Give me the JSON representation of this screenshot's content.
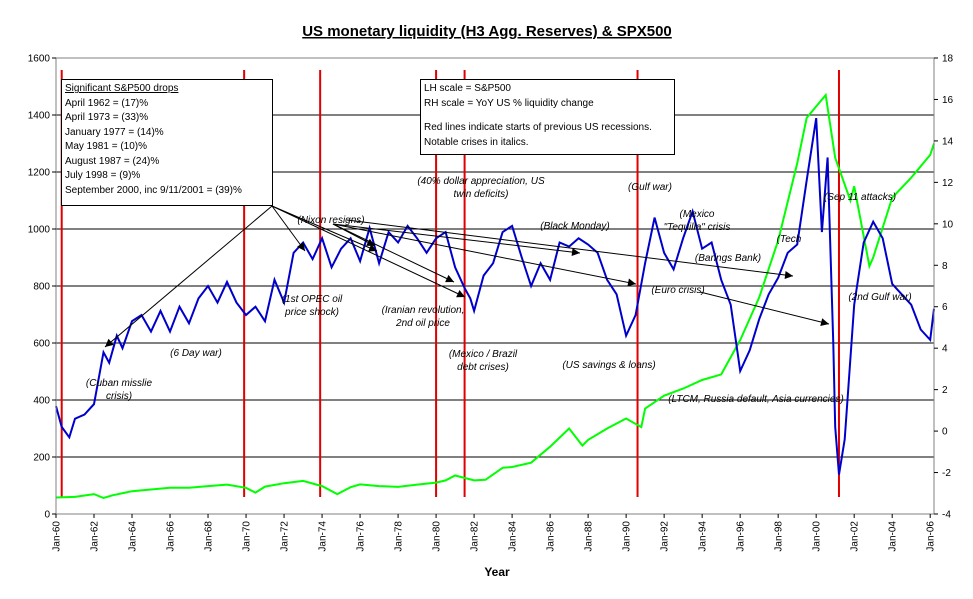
{
  "chart_data": {
    "type": "line",
    "title": "US monetary liquidity (H3 Agg. Reserves) & SPX500",
    "xlabel": "Year",
    "ylabel_left": "",
    "ylabel_right": "",
    "x_range": [
      1960.0,
      2006.2
    ],
    "ylim_left": [
      0,
      1600
    ],
    "ylim_right": [
      -4,
      18
    ],
    "left_ticks": [
      "0",
      "200",
      "400",
      "600",
      "800",
      "1000",
      "1200",
      "1400",
      "1600"
    ],
    "right_ticks": [
      "-4",
      "-2",
      "0",
      "2",
      "4",
      "6",
      "8",
      "10",
      "12",
      "14",
      "16",
      "18"
    ],
    "x_ticks": [
      "Jan-60",
      "Jan-62",
      "Jan-64",
      "Jan-66",
      "Jan-68",
      "Jan-70",
      "Jan-72",
      "Jan-74",
      "Jan-76",
      "Jan-78",
      "Jan-80",
      "Jan-82",
      "Jan-84",
      "Jan-86",
      "Jan-88",
      "Jan-90",
      "Jan-92",
      "Jan-94",
      "Jan-96",
      "Jan-98",
      "Jan-00",
      "Jan-02",
      "Jan-04",
      "Jan-06"
    ],
    "grid": "horizontal",
    "colors": {
      "spx": "#00ff00",
      "liquidity": "#0000cc",
      "recession": "#e00000"
    },
    "recession_starts": [
      1960.3,
      1969.9,
      1973.9,
      1980.0,
      1981.5,
      1990.6,
      2001.2
    ],
    "spx_series": {
      "axis": "left",
      "x": [
        1960.0,
        1961.0,
        1962.0,
        1962.5,
        1963.0,
        1964.0,
        1965.0,
        1966.0,
        1967.0,
        1968.0,
        1969.0,
        1970.0,
        1970.5,
        1971.0,
        1972.0,
        1973.0,
        1974.0,
        1974.8,
        1975.5,
        1976.0,
        1977.0,
        1978.0,
        1979.0,
        1980.0,
        1980.5,
        1981.0,
        1982.0,
        1982.6,
        1983.5,
        1984.0,
        1985.0,
        1986.0,
        1987.0,
        1987.7,
        1988.0,
        1989.0,
        1990.0,
        1990.8,
        1991.0,
        1992.0,
        1993.0,
        1994.0,
        1995.0,
        1996.0,
        1997.0,
        1998.0,
        1999.0,
        1999.5,
        2000.0,
        2000.5,
        2001.0,
        2001.8,
        2002.0,
        2002.8,
        2003.0,
        2004.0,
        2005.0,
        2006.0,
        2006.2
      ],
      "y": [
        58,
        60,
        70,
        56,
        66,
        80,
        86,
        92,
        92,
        98,
        103,
        92,
        75,
        96,
        108,
        116,
        98,
        70,
        94,
        104,
        98,
        95,
        103,
        110,
        118,
        135,
        118,
        120,
        162,
        165,
        180,
        236,
        300,
        240,
        260,
        300,
        335,
        305,
        370,
        415,
        440,
        470,
        490,
        610,
        760,
        960,
        1230,
        1390,
        1430,
        1470,
        1250,
        1100,
        1150,
        870,
        900,
        1110,
        1180,
        1260,
        1300
      ]
    },
    "liquidity_series": {
      "axis": "right",
      "x": [
        1960.0,
        1960.3,
        1960.7,
        1961.0,
        1961.5,
        1962.0,
        1962.5,
        1962.8,
        1963.2,
        1963.5,
        1964.0,
        1964.5,
        1965.0,
        1965.5,
        1966.0,
        1966.5,
        1967.0,
        1967.5,
        1968.0,
        1968.5,
        1969.0,
        1969.5,
        1970.0,
        1970.5,
        1971.0,
        1971.5,
        1972.0,
        1972.5,
        1973.0,
        1973.5,
        1974.0,
        1974.5,
        1975.0,
        1975.5,
        1976.0,
        1976.5,
        1977.0,
        1977.5,
        1978.0,
        1978.5,
        1979.0,
        1979.5,
        1980.0,
        1980.5,
        1981.0,
        1981.5,
        1981.8,
        1982.0,
        1982.5,
        1983.0,
        1983.5,
        1984.0,
        1984.5,
        1985.0,
        1985.5,
        1986.0,
        1986.5,
        1987.0,
        1987.5,
        1988.0,
        1988.5,
        1989.0,
        1989.5,
        1990.0,
        1990.5,
        1991.0,
        1991.5,
        1992.0,
        1992.5,
        1993.0,
        1993.5,
        1994.0,
        1994.5,
        1995.0,
        1995.5,
        1996.0,
        1996.5,
        1997.0,
        1997.5,
        1998.0,
        1998.5,
        1999.0,
        1999.5,
        2000.0,
        2000.3,
        2000.6,
        2000.9,
        2001.0,
        2001.2,
        2001.5,
        2002.0,
        2002.5,
        2003.0,
        2003.5,
        2004.0,
        2004.5,
        2005.0,
        2005.5,
        2006.0,
        2006.2
      ],
      "y": [
        1.2,
        0.2,
        -0.3,
        0.6,
        0.8,
        1.3,
        3.8,
        3.3,
        4.6,
        4.0,
        5.3,
        5.6,
        4.8,
        5.8,
        4.8,
        6.0,
        5.2,
        6.4,
        7.0,
        6.2,
        7.2,
        6.2,
        5.6,
        6.0,
        5.3,
        7.3,
        6.2,
        8.6,
        9.1,
        8.3,
        9.3,
        7.9,
        8.8,
        9.3,
        8.2,
        9.8,
        8.1,
        9.6,
        9.1,
        9.9,
        9.3,
        8.6,
        9.3,
        9.6,
        7.9,
        6.9,
        6.4,
        5.8,
        7.5,
        8.1,
        9.6,
        9.9,
        8.4,
        7.0,
        8.1,
        7.3,
        9.1,
        8.9,
        9.3,
        9.0,
        8.6,
        7.3,
        6.6,
        4.6,
        5.6,
        8.1,
        10.3,
        8.6,
        7.8,
        9.3,
        10.6,
        8.8,
        9.1,
        7.3,
        6.1,
        2.9,
        3.9,
        5.4,
        6.6,
        7.4,
        8.6,
        9.0,
        12.1,
        15.1,
        9.6,
        13.2,
        4.2,
        0.2,
        -2.1,
        -0.4,
        6.1,
        9.1,
        10.1,
        9.3,
        7.1,
        6.6,
        6.1,
        4.9,
        4.4,
        5.9
      ]
    },
    "legend_box": [
      "LH scale = S&P500",
      "RH scale = YoY US % liquidity change",
      "",
      "Red lines indicate starts of previous US recessions.",
      "Notable crises in italics."
    ],
    "drops_box": {
      "header": "Significant S&P500 drops",
      "items": [
        "April 1962 = (17)%",
        "April 1973 = (33)%",
        "January 1977 = (14)%",
        "May 1981 = (10)%",
        "August 1987 = (24)%",
        "July 1998 = (9)%",
        "September 2000, inc 9/11/2001 = (39)%"
      ]
    },
    "annotations": [
      {
        "id": "cuban",
        "lines": [
          "(Cuban misslie",
          "crisis)"
        ]
      },
      {
        "id": "sixday",
        "lines": [
          "(6 Day war)"
        ]
      },
      {
        "id": "opec",
        "lines": [
          "(1st OPEC oil",
          "price shock)"
        ]
      },
      {
        "id": "nixon",
        "lines": [
          "(Nixon resigns)"
        ]
      },
      {
        "id": "iranian",
        "lines": [
          "(Iranian revolution,",
          "2nd oil price"
        ]
      },
      {
        "id": "mexbrazil",
        "lines": [
          "(Mexico / Brazil",
          "debt crises)"
        ]
      },
      {
        "id": "dollar",
        "lines": [
          "(40% dollar appreciation, US",
          "twin deficits)"
        ]
      },
      {
        "id": "blackmonday",
        "lines": [
          "(Black Monday)"
        ]
      },
      {
        "id": "savings",
        "lines": [
          "(US savings & loans)"
        ]
      },
      {
        "id": "gulf",
        "lines": [
          "(Gulf war)"
        ]
      },
      {
        "id": "tequila",
        "lines": [
          "(Mexico",
          "\"Tequilla\" crisis"
        ]
      },
      {
        "id": "barings",
        "lines": [
          "(Barings Bank)"
        ]
      },
      {
        "id": "euro",
        "lines": [
          "(Euro crisis)"
        ]
      },
      {
        "id": "tech",
        "lines": [
          "(Tech"
        ]
      },
      {
        "id": "ltcm",
        "lines": [
          "(LTCM, Russia default, Asia currencies)"
        ]
      },
      {
        "id": "sep11",
        "lines": [
          "(Sep 11 attacks)"
        ]
      },
      {
        "id": "gulf2",
        "lines": [
          "(2nd Gulf war)"
        ]
      }
    ]
  }
}
